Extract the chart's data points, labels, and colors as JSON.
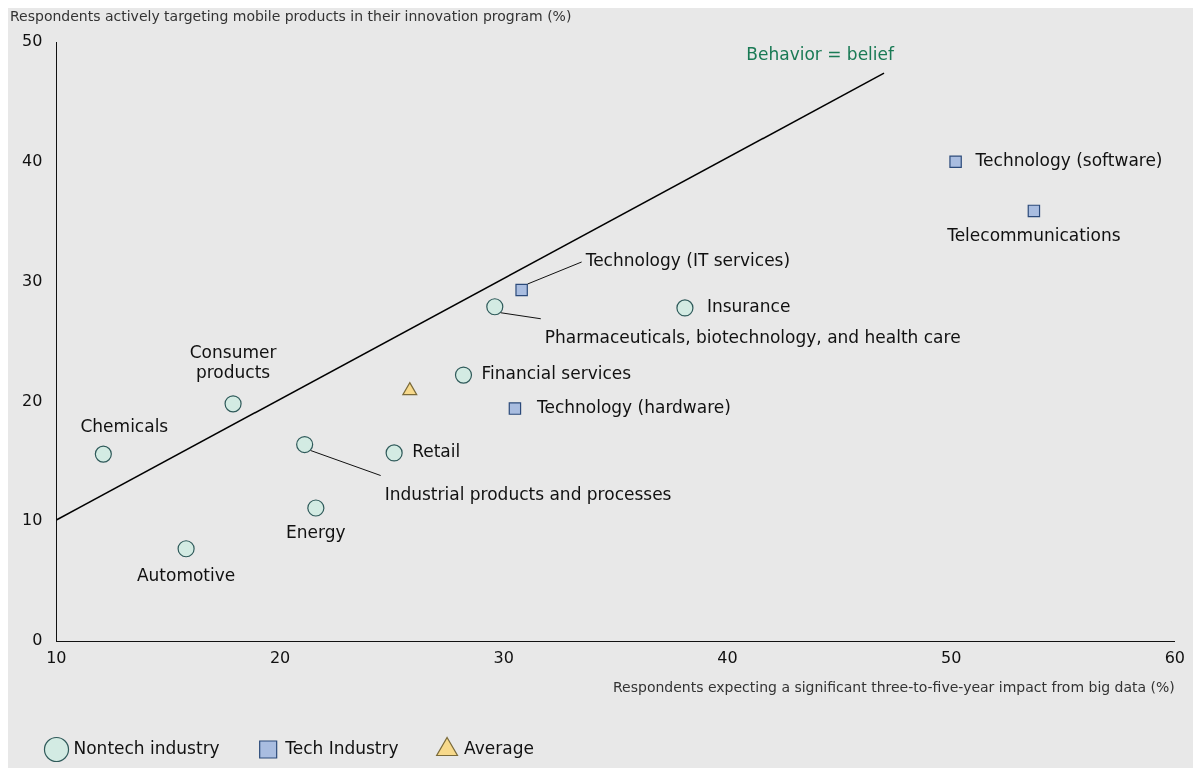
{
  "chart_data": {
    "type": "scatter",
    "ylabel": "Respondents actively targeting mobile products in their innovation program (%)",
    "xlabel": "Respondents expecting a significant three-to-five-year impact from big data (%)",
    "xlim": [
      10,
      60
    ],
    "xticks": [
      10,
      20,
      30,
      40,
      50,
      60
    ],
    "ylim": [
      0,
      50
    ],
    "yticks": [
      0,
      10,
      20,
      30,
      40,
      50
    ],
    "grid": false,
    "legend": "bottom left",
    "series": [
      {
        "name": "Nontech industry",
        "color": "#d3ebe3",
        "marker": "circle",
        "x": [
          12.1,
          17.9,
          15.8,
          21.6,
          21.1,
          25.1,
          28.2,
          29.6,
          38.1
        ],
        "values": [
          15.6,
          19.8,
          7.7,
          11.1,
          16.4,
          15.7,
          22.2,
          27.9,
          27.8
        ],
        "value_labels": [
          "Chemicals",
          "Consumer products",
          "Automotive",
          "Energy",
          "Industrial products and processes",
          "Retail",
          "Financial services",
          "Pharmaceuticals, biotechnology, and health care",
          "Insurance"
        ]
      },
      {
        "name": "Tech Industry",
        "color": "#a9bde0",
        "marker": "square",
        "x": [
          50.2,
          53.7,
          30.8,
          30.5
        ],
        "values": [
          40.0,
          35.9,
          29.3,
          19.4
        ],
        "value_labels": [
          "Technology (software)",
          "Telecommunications",
          "Technology (IT services)",
          "Technology (hardware)"
        ]
      },
      {
        "name": "Average",
        "color": "#f7d98b",
        "marker": "triangle",
        "x": [
          25.8
        ],
        "values": [
          20.9
        ]
      },
      {
        "type": "line",
        "color": "#000000",
        "marker": "none",
        "x": [
          10,
          47
        ],
        "values": [
          10.1,
          47.4
        ]
      }
    ],
    "annotations": [
      "Behavior = belief"
    ]
  }
}
